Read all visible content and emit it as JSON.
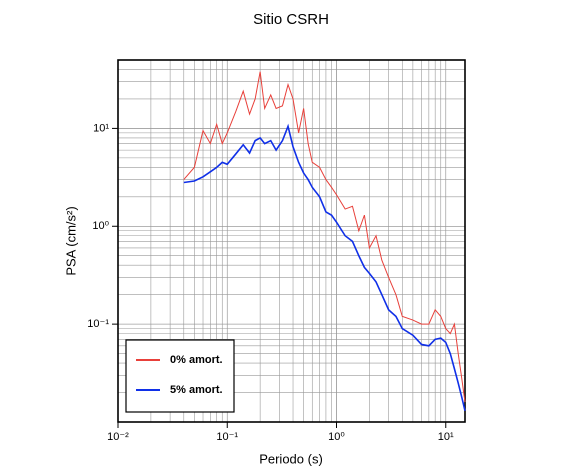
{
  "chart_data": {
    "type": "line",
    "title": "Sitio CSRH",
    "xlabel": "Periodo (s)",
    "ylabel": "PSA (cm/s²)",
    "log_x": true,
    "log_y": true,
    "grid": true,
    "minor_grid": true,
    "legend": "lower left",
    "xlim": [
      0.01,
      15
    ],
    "ylim": [
      0.01,
      50
    ],
    "xticks": [
      {
        "value": 0.01,
        "label": "10⁻²"
      },
      {
        "value": 0.1,
        "label": "10⁻¹"
      },
      {
        "value": 1,
        "label": "10⁰"
      },
      {
        "value": 10,
        "label": "10¹"
      }
    ],
    "yticks": [
      {
        "value": 0.1,
        "label": "10⁻¹"
      },
      {
        "value": 1,
        "label": "10⁰"
      },
      {
        "value": 10,
        "label": "10¹"
      }
    ],
    "x": [
      0.04,
      0.05,
      0.06,
      0.07,
      0.08,
      0.09,
      0.1,
      0.12,
      0.14,
      0.16,
      0.18,
      0.2,
      0.22,
      0.25,
      0.28,
      0.32,
      0.36,
      0.4,
      0.45,
      0.5,
      0.55,
      0.6,
      0.7,
      0.8,
      0.9,
      1.0,
      1.2,
      1.4,
      1.6,
      1.8,
      2.0,
      2.3,
      2.6,
      3.0,
      3.5,
      4.0,
      5,
      6,
      7,
      8,
      9,
      10,
      11,
      12,
      13,
      14,
      15
    ],
    "series": [
      {
        "name": "0% amort.",
        "color": "#e8403a",
        "width": 1,
        "values": [
          3,
          4,
          9.5,
          7,
          11,
          7,
          9,
          15,
          24,
          14,
          20,
          38,
          16,
          22,
          16,
          17,
          28,
          20,
          9,
          16,
          7,
          4.5,
          4,
          3,
          2.5,
          2.1,
          1.5,
          1.6,
          0.9,
          1.3,
          0.6,
          0.8,
          0.45,
          0.3,
          0.2,
          0.12,
          0.11,
          0.1,
          0.1,
          0.14,
          0.12,
          0.09,
          0.08,
          0.1,
          0.05,
          0.028,
          0.016
        ]
      },
      {
        "name": "5% amort.",
        "color": "#1030e8",
        "width": 1.6,
        "values": [
          2.8,
          2.9,
          3.2,
          3.6,
          4.0,
          4.5,
          4.3,
          5.5,
          6.8,
          5.6,
          7.5,
          8,
          7,
          7.5,
          6,
          7.5,
          10.5,
          6.5,
          4.5,
          3.5,
          3,
          2.5,
          2,
          1.4,
          1.3,
          1.1,
          0.8,
          0.7,
          0.5,
          0.38,
          0.33,
          0.27,
          0.2,
          0.14,
          0.12,
          0.09,
          0.077,
          0.062,
          0.06,
          0.07,
          0.072,
          0.065,
          0.05,
          0.035,
          0.025,
          0.018,
          0.013
        ]
      }
    ]
  }
}
